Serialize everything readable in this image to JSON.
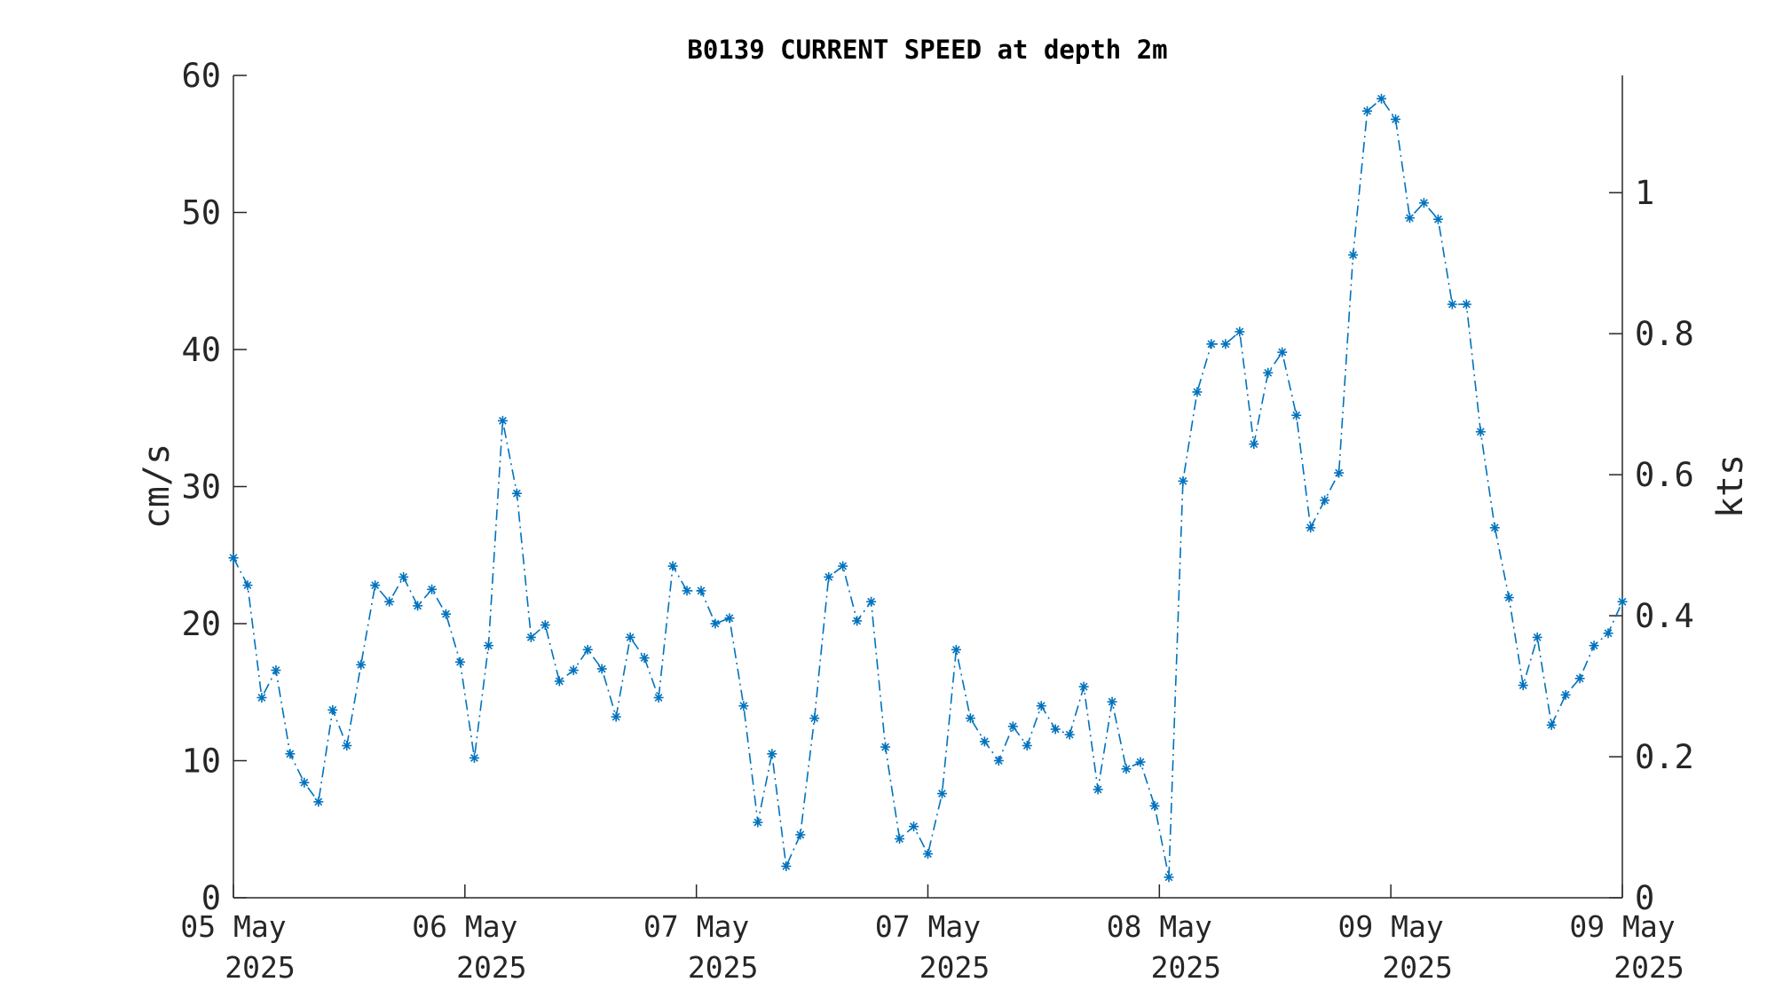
{
  "chart_data": {
    "type": "line",
    "title": "B0139 CURRENT SPEED at depth 2m",
    "ylabel": "cm/s",
    "ylabel_right": "kts",
    "ylim": [
      0,
      60
    ],
    "yticks": [
      "0",
      "10",
      "20",
      "30",
      "40",
      "50",
      "60"
    ],
    "ylim_right": [
      0,
      1.1663
    ],
    "yticks_right": [
      "0",
      "0.2",
      "0.4",
      "0.6",
      "0.8",
      "1"
    ],
    "xticks": [
      {
        "day": "05 May",
        "year": "2025"
      },
      {
        "day": "06 May",
        "year": "2025"
      },
      {
        "day": "07 May",
        "year": "2025"
      },
      {
        "day": "07 May",
        "year": "2025"
      },
      {
        "day": "08 May",
        "year": "2025"
      },
      {
        "day": "09 May",
        "year": "2025"
      },
      {
        "day": "09 May",
        "year": "2025"
      }
    ],
    "grid": false,
    "series": [
      {
        "line_style": "dash-dot",
        "marker": "asterisk",
        "color": "#0072BD",
        "values": [
          24.8,
          22.8,
          14.6,
          16.6,
          10.5,
          8.4,
          7.0,
          13.7,
          11.1,
          17.0,
          22.8,
          21.6,
          23.4,
          21.3,
          22.5,
          20.7,
          17.2,
          10.2,
          18.4,
          34.8,
          29.5,
          19.0,
          19.9,
          15.8,
          16.6,
          18.1,
          16.7,
          13.2,
          19.0,
          17.5,
          14.6,
          24.2,
          22.4,
          22.4,
          20.0,
          20.4,
          14.0,
          5.5,
          10.5,
          2.3,
          4.6,
          13.1,
          23.4,
          24.2,
          20.2,
          21.6,
          11.0,
          4.3,
          5.2,
          3.2,
          7.6,
          18.1,
          13.1,
          11.4,
          10.0,
          12.5,
          11.1,
          14.0,
          12.3,
          11.9,
          15.4,
          7.9,
          14.3,
          9.4,
          9.9,
          6.7,
          1.5,
          30.4,
          36.9,
          40.4,
          40.4,
          41.3,
          33.1,
          38.3,
          39.8,
          35.2,
          27.0,
          29.0,
          31.0,
          46.9,
          57.4,
          58.3,
          56.8,
          49.6,
          50.7,
          49.5,
          43.3,
          43.3,
          34.0,
          27.0,
          21.9,
          15.5,
          19.0,
          12.6,
          14.8,
          16.0,
          18.4,
          19.3,
          21.6
        ]
      }
    ]
  }
}
